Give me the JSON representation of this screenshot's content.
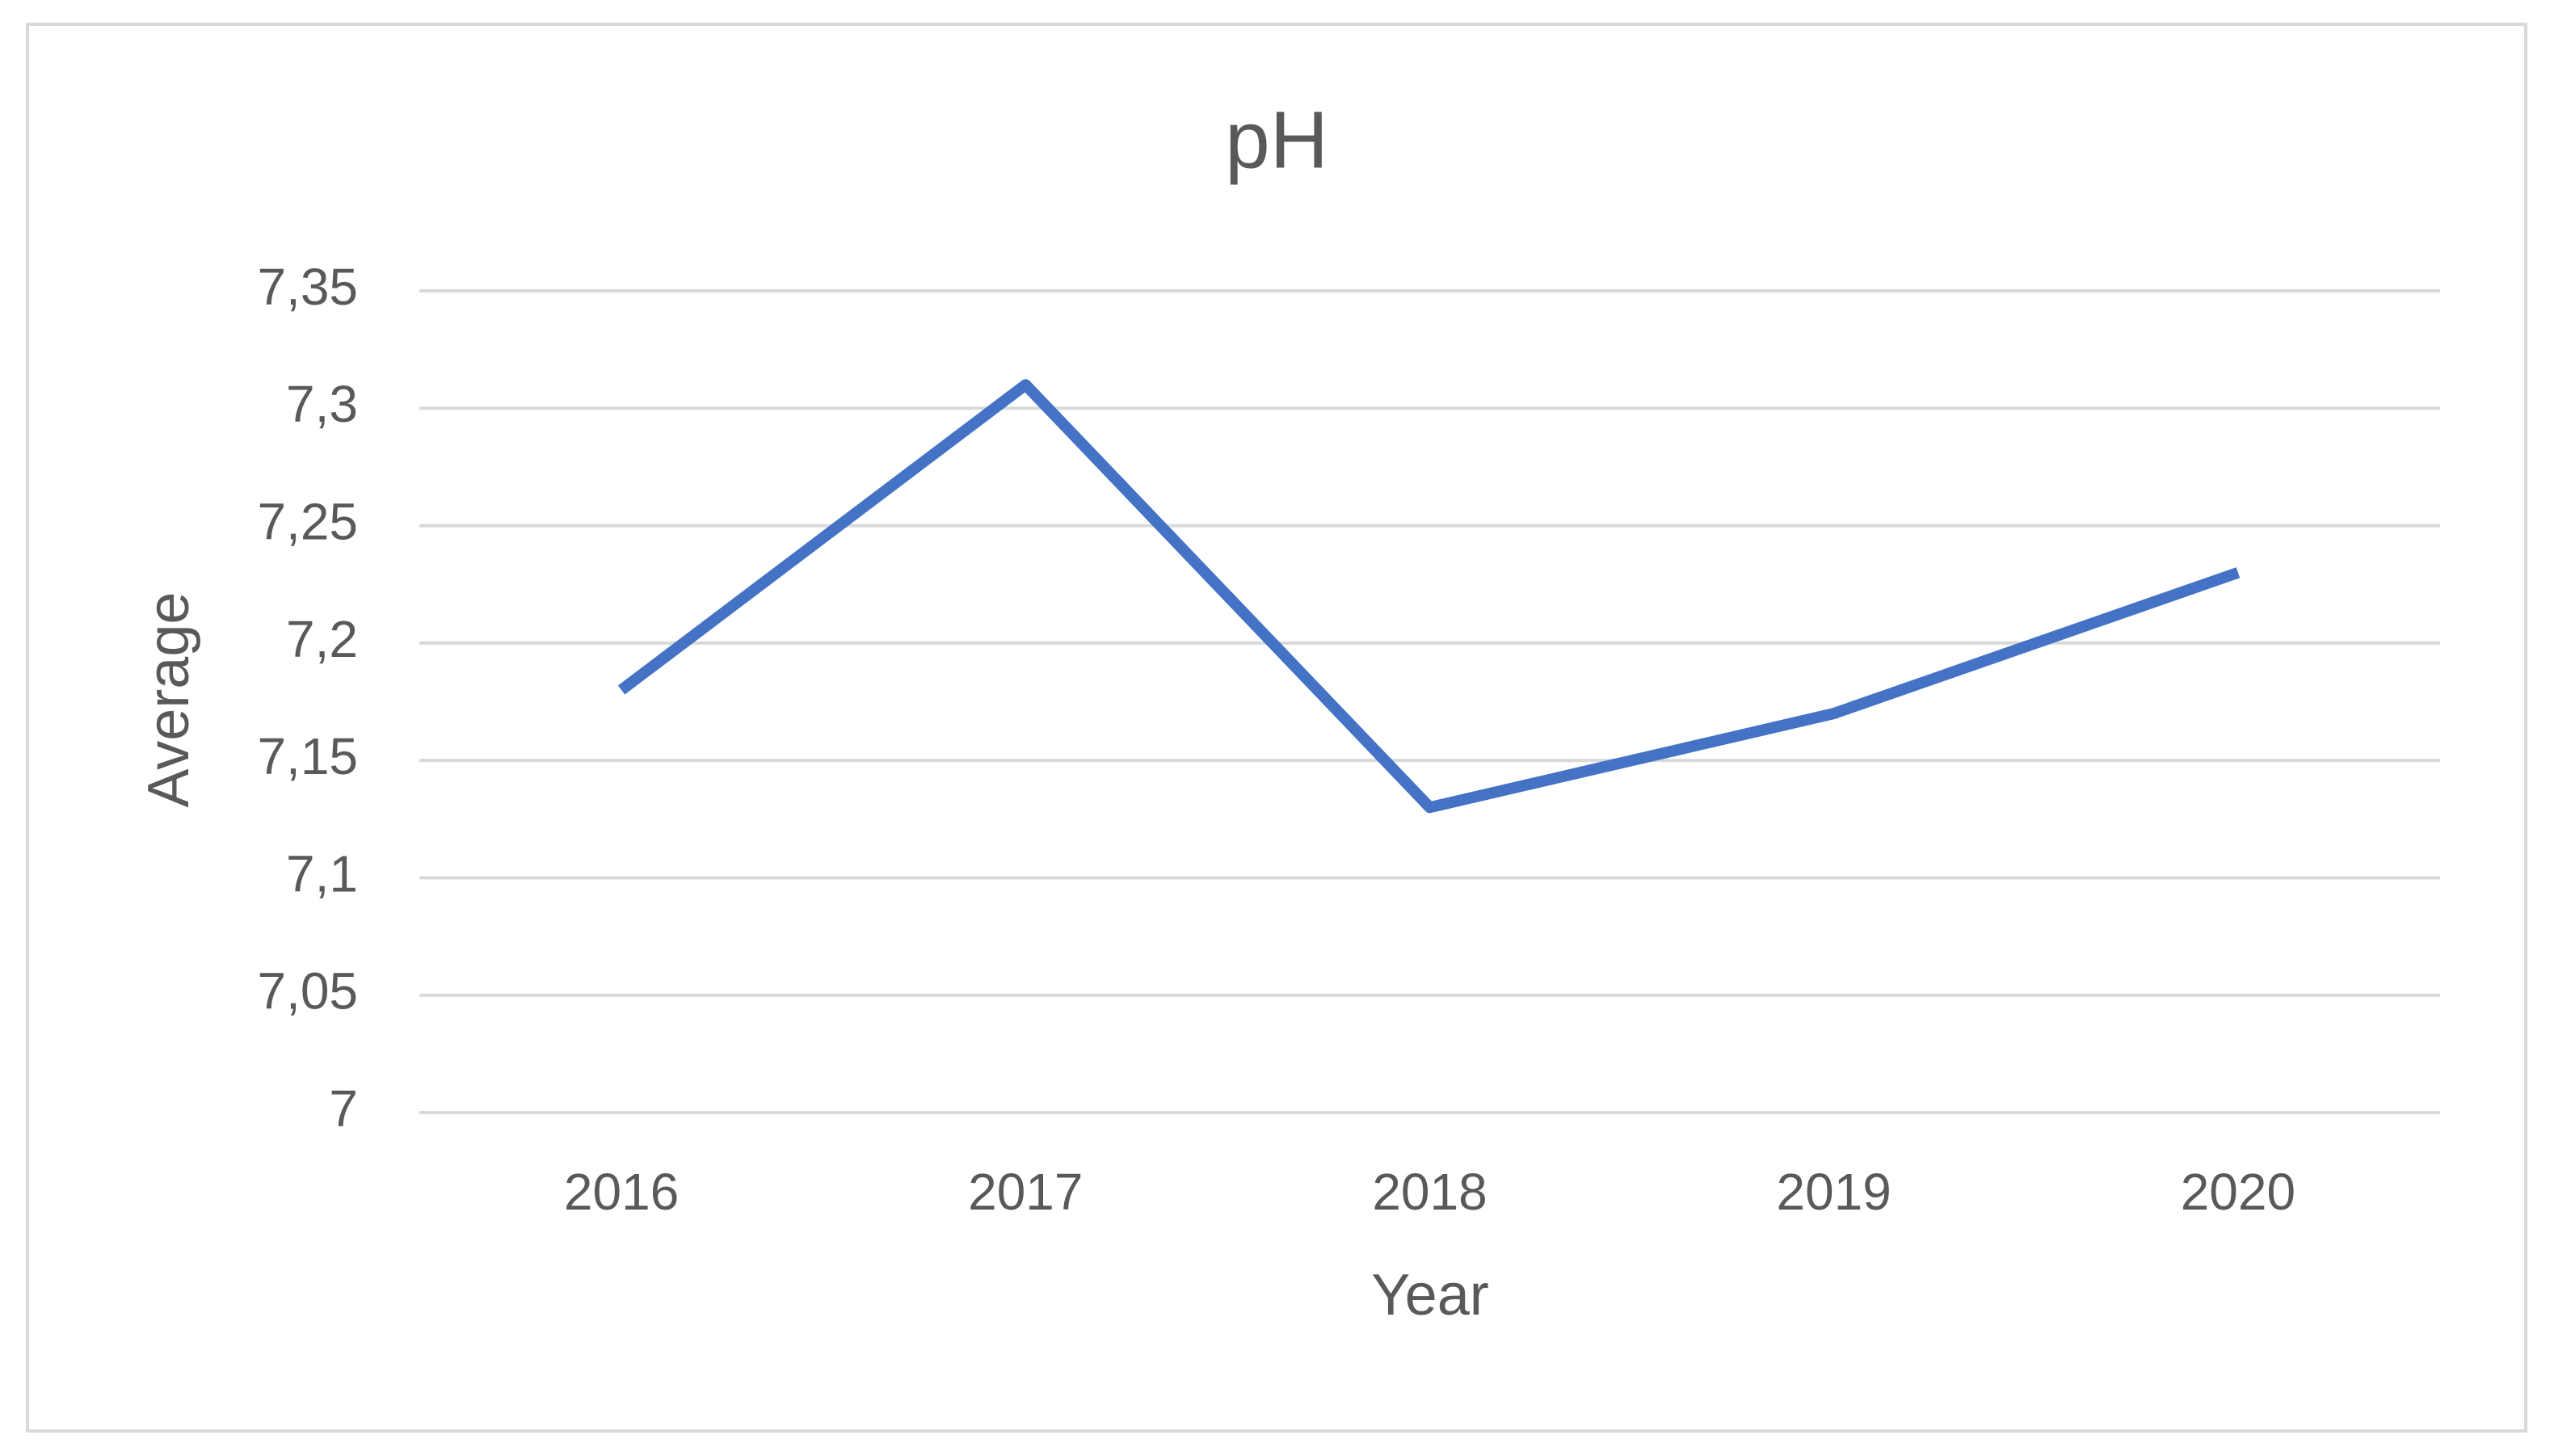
{
  "chart_data": {
    "type": "line",
    "title": "pH",
    "x_label": "Year",
    "y_label": "Average",
    "categories": [
      "2016",
      "2017",
      "2018",
      "2019",
      "2020"
    ],
    "series": [
      {
        "name": "pH",
        "color": "#4472c4",
        "values": [
          7.18,
          7.31,
          7.13,
          7.17,
          7.23
        ]
      }
    ],
    "ylim": [
      7,
      7.35
    ],
    "yticks": [
      7,
      {
        "value": 7.05,
        "label": "7,05"
      },
      {
        "value": 7.1,
        "label": "7,1"
      },
      {
        "value": 7.15,
        "label": "7,15"
      },
      {
        "value": 7.2,
        "label": "7,2"
      },
      {
        "value": 7.25,
        "label": "7,25"
      },
      {
        "value": 7.3,
        "label": "7,3"
      },
      {
        "value": 7.35,
        "label": "7,35"
      }
    ],
    "grid": true
  }
}
